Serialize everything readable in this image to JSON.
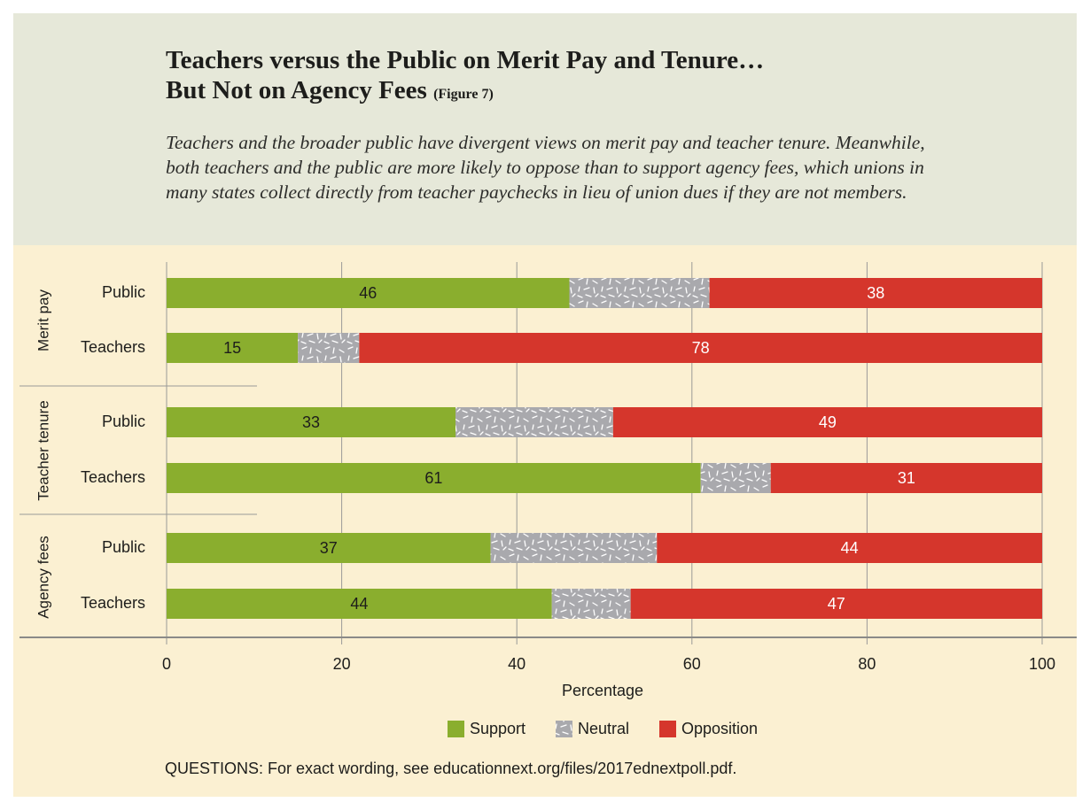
{
  "header": {
    "title_line1": "Teachers versus the Public on Merit Pay and Tenure…",
    "title_line2": "But Not on Agency Fees",
    "figure_label": "(Figure 7)",
    "subtitle": "Teachers and the broader public have divergent views on merit pay and teacher tenure. Meanwhile, both teachers and the public are more likely to oppose than to support agency fees, which unions in many states collect directly from teacher paychecks in lieu of union dues if they are not members."
  },
  "colors": {
    "support": "#8aae2e",
    "neutral": "#a9a9ad",
    "opposition": "#d5362c",
    "header_bg": "#e6e8d9",
    "chart_bg": "#fbf0d2"
  },
  "chart_data": {
    "type": "bar",
    "orientation": "horizontal",
    "stacked": true,
    "xlabel": "Percentage",
    "xlim": [
      0,
      100
    ],
    "xticks": [
      0,
      20,
      40,
      60,
      80,
      100
    ],
    "grid": "vertical",
    "legend_position": "bottom",
    "groups": [
      {
        "label": "Merit pay",
        "rows": [
          {
            "label": "Public",
            "support": 46,
            "neutral": 15,
            "opposition": 38
          },
          {
            "label": "Teachers",
            "support": 15,
            "neutral": 7,
            "opposition": 78
          }
        ]
      },
      {
        "label": "Teacher tenure",
        "rows": [
          {
            "label": "Public",
            "support": 33,
            "neutral": 18,
            "opposition": 49
          },
          {
            "label": "Teachers",
            "support": 61,
            "neutral": 8,
            "opposition": 31
          }
        ]
      },
      {
        "label": "Agency fees",
        "rows": [
          {
            "label": "Public",
            "support": 37,
            "neutral": 18,
            "opposition": 44
          },
          {
            "label": "Teachers",
            "support": 44,
            "neutral": 9,
            "opposition": 47
          }
        ]
      }
    ],
    "labeled_series": [
      "support",
      "opposition"
    ],
    "series": [
      {
        "key": "support",
        "name": "Support"
      },
      {
        "key": "neutral",
        "name": "Neutral"
      },
      {
        "key": "opposition",
        "name": "Opposition"
      }
    ]
  },
  "note": "QUESTIONS: For exact wording, see educationnext.org/files/2017ednextpoll.pdf."
}
